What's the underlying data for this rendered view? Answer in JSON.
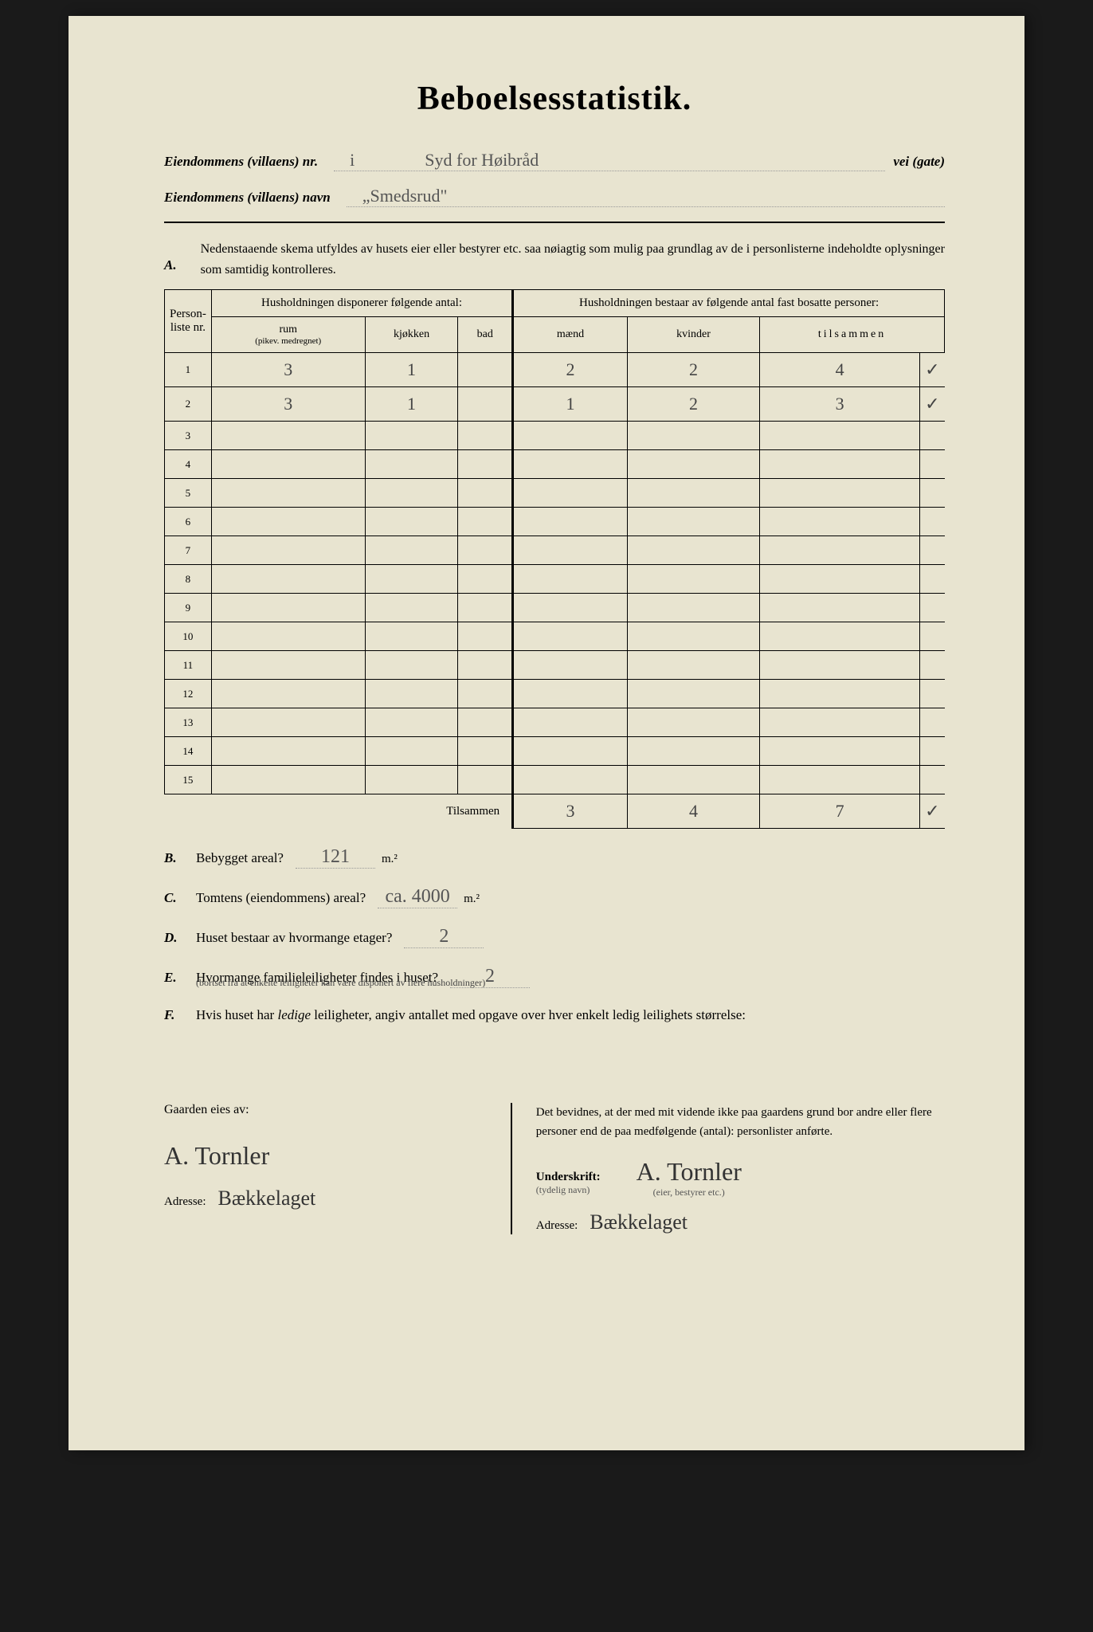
{
  "title": "Beboelsesstatistik.",
  "header": {
    "nr_label": "Eiendommens (villaens) nr.",
    "nr_value": "i",
    "nr_street": "Syd for Høibråd",
    "nr_suffix": "vei (gate)",
    "navn_label": "Eiendommens (villaens) navn",
    "navn_value": "„Smedsrud\""
  },
  "sectionA": {
    "letter": "A.",
    "text": "Nedenstaaende skema utfyldes av husets eier eller bestyrer etc. saa nøiagtig som mulig paa grundlag av de i personlisterne indeholdte oplysninger som samtidig kontrolleres."
  },
  "table": {
    "col_personliste": "Person-liste nr.",
    "col_disponerer": "Husholdningen disponerer følgende antal:",
    "col_bestaar": "Husholdningen bestaar av følgende antal fast bosatte personer:",
    "col_rum": "rum",
    "col_rum_sub": "(pikev. medregnet)",
    "col_kjokken": "kjøkken",
    "col_bad": "bad",
    "col_maend": "mænd",
    "col_kvinder": "kvinder",
    "col_tilsammen": "tilsammen",
    "rows": [
      {
        "n": "1",
        "rum": "3",
        "kjokken": "1",
        "bad": "",
        "maend": "2",
        "kvinder": "2",
        "tilsammen": "4",
        "check": "✓"
      },
      {
        "n": "2",
        "rum": "3",
        "kjokken": "1",
        "bad": "",
        "maend": "1",
        "kvinder": "2",
        "tilsammen": "3",
        "check": "✓"
      },
      {
        "n": "3",
        "rum": "",
        "kjokken": "",
        "bad": "",
        "maend": "",
        "kvinder": "",
        "tilsammen": "",
        "check": ""
      },
      {
        "n": "4",
        "rum": "",
        "kjokken": "",
        "bad": "",
        "maend": "",
        "kvinder": "",
        "tilsammen": "",
        "check": ""
      },
      {
        "n": "5",
        "rum": "",
        "kjokken": "",
        "bad": "",
        "maend": "",
        "kvinder": "",
        "tilsammen": "",
        "check": ""
      },
      {
        "n": "6",
        "rum": "",
        "kjokken": "",
        "bad": "",
        "maend": "",
        "kvinder": "",
        "tilsammen": "",
        "check": ""
      },
      {
        "n": "7",
        "rum": "",
        "kjokken": "",
        "bad": "",
        "maend": "",
        "kvinder": "",
        "tilsammen": "",
        "check": ""
      },
      {
        "n": "8",
        "rum": "",
        "kjokken": "",
        "bad": "",
        "maend": "",
        "kvinder": "",
        "tilsammen": "",
        "check": ""
      },
      {
        "n": "9",
        "rum": "",
        "kjokken": "",
        "bad": "",
        "maend": "",
        "kvinder": "",
        "tilsammen": "",
        "check": ""
      },
      {
        "n": "10",
        "rum": "",
        "kjokken": "",
        "bad": "",
        "maend": "",
        "kvinder": "",
        "tilsammen": "",
        "check": ""
      },
      {
        "n": "11",
        "rum": "",
        "kjokken": "",
        "bad": "",
        "maend": "",
        "kvinder": "",
        "tilsammen": "",
        "check": ""
      },
      {
        "n": "12",
        "rum": "",
        "kjokken": "",
        "bad": "",
        "maend": "",
        "kvinder": "",
        "tilsammen": "",
        "check": ""
      },
      {
        "n": "13",
        "rum": "",
        "kjokken": "",
        "bad": "",
        "maend": "",
        "kvinder": "",
        "tilsammen": "",
        "check": ""
      },
      {
        "n": "14",
        "rum": "",
        "kjokken": "",
        "bad": "",
        "maend": "",
        "kvinder": "",
        "tilsammen": "",
        "check": ""
      },
      {
        "n": "15",
        "rum": "",
        "kjokken": "",
        "bad": "",
        "maend": "",
        "kvinder": "",
        "tilsammen": "",
        "check": ""
      }
    ],
    "totals_label": "Tilsammen",
    "totals": {
      "maend": "3",
      "kvinder": "4",
      "tilsammen": "7",
      "check": "✓"
    }
  },
  "questions": {
    "B": {
      "letter": "B.",
      "text": "Bebygget areal?",
      "value": "121",
      "unit": "m.²"
    },
    "C": {
      "letter": "C.",
      "text": "Tomtens (eiendommens) areal?",
      "value": "ca. 4000",
      "unit": "m.²"
    },
    "D": {
      "letter": "D.",
      "text": "Huset bestaar av hvormange etager?",
      "value": "2",
      "unit": ""
    },
    "E": {
      "letter": "E.",
      "text": "Hvormange familieleiligheter findes i huset?",
      "value": "2",
      "unit": "",
      "note": "(bortset fra at enkelte leiligheter kan være disponert av flere husholdninger)"
    },
    "F": {
      "letter": "F.",
      "text": "Hvis huset har ledige leiligheter, angiv antallet med opgave over hver enkelt ledig leilighets størrelse:",
      "value": "",
      "unit": ""
    }
  },
  "footer": {
    "left_label": "Gaarden eies av:",
    "owner_signature": "A. Tornler",
    "address_label": "Adresse:",
    "left_address": "Bækkelaget",
    "right_text": "Det bevidnes, at der med mit vidende ikke paa gaardens grund bor andre eller flere personer end de paa medfølgende (antal):                    personlister anførte.",
    "signature_label": "Underskrift:",
    "signature_sublabel": "(tydelig navn)",
    "right_signature": "A. Tornler",
    "role_sublabel": "(eier, bestyrer etc.)",
    "right_address": "Bækkelaget"
  }
}
